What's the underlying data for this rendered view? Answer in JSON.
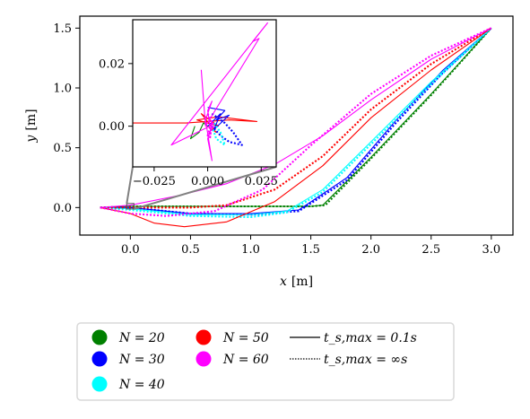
{
  "chart_data": {
    "type": "line",
    "xlabel": {
      "var": "x",
      "unit": "[m]"
    },
    "ylabel": {
      "var": "y",
      "unit": "[m]"
    },
    "xlim": [
      -0.42,
      3.18
    ],
    "ylim": [
      -0.23,
      1.6
    ],
    "xticks": [
      "0.0",
      "0.5",
      "1.0",
      "1.5",
      "2.0",
      "2.5",
      "3.0"
    ],
    "xtick_values": [
      0,
      0.5,
      1,
      1.5,
      2,
      2.5,
      3
    ],
    "yticks": [
      "0.0",
      "0.5",
      "1.0",
      "1.5"
    ],
    "ytick_values": [
      0,
      0.5,
      1,
      1.5
    ],
    "legend": [
      {
        "name": "N = 20",
        "color": "#008000"
      },
      {
        "name": "N = 30",
        "color": "#0000ff"
      },
      {
        "name": "N = 40",
        "color": "#00ffff"
      },
      {
        "name": "N = 50",
        "color": "#ff0000"
      },
      {
        "name": "N = 60",
        "color": "#ff00ff"
      }
    ],
    "style_legend": [
      {
        "name": "t_s,max = 0.1s",
        "style": "solid"
      },
      {
        "name": "t_s,max = ∞s",
        "style": "dotted"
      }
    ],
    "series": [
      {
        "name": "N = 20",
        "color": "#008000",
        "style": "solid",
        "points": [
          [
            -0.25,
            0
          ],
          [
            0,
            0.01
          ],
          [
            0.5,
            0.01
          ],
          [
            1,
            0.01
          ],
          [
            1.5,
            0.01
          ],
          [
            1.6,
            0.02
          ],
          [
            2.0,
            0.42
          ],
          [
            2.5,
            0.95
          ],
          [
            3.0,
            1.5
          ]
        ]
      },
      {
        "name": "N = 20",
        "color": "#008000",
        "style": "dotted",
        "points": [
          [
            -0.25,
            0
          ],
          [
            0,
            0.01
          ],
          [
            0.5,
            0.01
          ],
          [
            1,
            0.01
          ],
          [
            1.5,
            0.01
          ],
          [
            1.62,
            0.02
          ],
          [
            2.0,
            0.41
          ],
          [
            2.5,
            0.94
          ],
          [
            3.0,
            1.5
          ]
        ]
      },
      {
        "name": "N = 30",
        "color": "#0000ff",
        "style": "solid",
        "points": [
          [
            -0.25,
            0
          ],
          [
            0,
            0
          ],
          [
            0.5,
            -0.05
          ],
          [
            1,
            -0.05
          ],
          [
            1.4,
            -0.02
          ],
          [
            1.8,
            0.25
          ],
          [
            2.2,
            0.72
          ],
          [
            2.6,
            1.15
          ],
          [
            3.0,
            1.5
          ]
        ]
      },
      {
        "name": "N = 30",
        "color": "#0000ff",
        "style": "dotted",
        "points": [
          [
            -0.25,
            0
          ],
          [
            0,
            0
          ],
          [
            0.5,
            -0.05
          ],
          [
            1,
            -0.06
          ],
          [
            1.4,
            -0.03
          ],
          [
            1.8,
            0.23
          ],
          [
            2.2,
            0.7
          ],
          [
            2.6,
            1.13
          ],
          [
            3.0,
            1.5
          ]
        ]
      },
      {
        "name": "N = 40",
        "color": "#00ffff",
        "style": "solid",
        "points": [
          [
            -0.25,
            0
          ],
          [
            0,
            -0.01
          ],
          [
            0.5,
            -0.06
          ],
          [
            1,
            -0.06
          ],
          [
            1.3,
            -0.03
          ],
          [
            1.6,
            0.15
          ],
          [
            2.0,
            0.55
          ],
          [
            2.5,
            1.05
          ],
          [
            3.0,
            1.5
          ]
        ]
      },
      {
        "name": "N = 40",
        "color": "#00ffff",
        "style": "dotted",
        "points": [
          [
            -0.25,
            0
          ],
          [
            0,
            -0.02
          ],
          [
            0.5,
            -0.07
          ],
          [
            1,
            -0.08
          ],
          [
            1.3,
            -0.04
          ],
          [
            1.6,
            0.13
          ],
          [
            2.0,
            0.53
          ],
          [
            2.5,
            1.03
          ],
          [
            3.0,
            1.5
          ]
        ]
      },
      {
        "name": "N = 50",
        "color": "#ff0000",
        "style": "solid",
        "points": [
          [
            -0.25,
            0
          ],
          [
            0,
            -0.05
          ],
          [
            0.2,
            -0.13
          ],
          [
            0.45,
            -0.16
          ],
          [
            0.8,
            -0.12
          ],
          [
            1.2,
            0.05
          ],
          [
            1.6,
            0.35
          ],
          [
            2.0,
            0.75
          ],
          [
            2.5,
            1.15
          ],
          [
            3.0,
            1.5
          ]
        ]
      },
      {
        "name": "N = 50",
        "color": "#ff0000",
        "style": "dotted",
        "points": [
          [
            -0.25,
            0
          ],
          [
            0,
            0
          ],
          [
            0.5,
            0
          ],
          [
            0.8,
            0.02
          ],
          [
            1.2,
            0.15
          ],
          [
            1.6,
            0.43
          ],
          [
            2.0,
            0.82
          ],
          [
            2.5,
            1.2
          ],
          [
            3.0,
            1.5
          ]
        ]
      },
      {
        "name": "N = 60",
        "color": "#ff00ff",
        "style": "solid",
        "points": [
          [
            -0.25,
            0
          ],
          [
            0,
            0.02
          ],
          [
            0.4,
            0.1
          ],
          [
            0.8,
            0.2
          ],
          [
            1.2,
            0.36
          ],
          [
            1.6,
            0.6
          ],
          [
            2.0,
            0.9
          ],
          [
            2.5,
            1.24
          ],
          [
            3.0,
            1.5
          ]
        ]
      },
      {
        "name": "N = 60",
        "color": "#ff00ff",
        "style": "dotted",
        "points": [
          [
            -0.25,
            0
          ],
          [
            0,
            -0.05
          ],
          [
            0.3,
            -0.07
          ],
          [
            0.7,
            -0.03
          ],
          [
            1.1,
            0.15
          ],
          [
            1.5,
            0.52
          ],
          [
            2.0,
            0.95
          ],
          [
            2.5,
            1.27
          ],
          [
            3.0,
            1.5
          ]
        ]
      }
    ],
    "inset": {
      "xlim": [
        -0.035,
        0.032
      ],
      "ylim": [
        -0.013,
        0.034
      ],
      "xticks": [
        "−0.025",
        "0.000",
        "0.025"
      ],
      "xtick_values": [
        -0.025,
        0,
        0.025
      ],
      "yticks": [
        "0.00",
        "0.02"
      ],
      "ytick_values": [
        0,
        0.02
      ],
      "zoom_region": {
        "x": [
          -0.03,
          0.03
        ],
        "y": [
          -0.012,
          0.034
        ]
      },
      "series": [
        {
          "color": "#ff0000",
          "style": "solid",
          "points": [
            [
              -0.035,
              0.001
            ],
            [
              -0.01,
              0.001
            ],
            [
              0.01,
              0.002
            ],
            [
              0.023,
              0.0015
            ],
            [
              0.005,
              0.003
            ],
            [
              -0.005,
              0.002
            ],
            [
              0.005,
              0.0
            ],
            [
              -0.003,
              0.004
            ],
            [
              0.004,
              -0.002
            ],
            [
              0,
              0
            ]
          ]
        },
        {
          "color": "#0000ff",
          "style": "solid",
          "points": [
            [
              0,
              0.006
            ],
            [
              0.008,
              0.005
            ],
            [
              0.004,
              0.002
            ],
            [
              0.01,
              0.0035
            ],
            [
              0.003,
              -0.001
            ],
            [
              0.006,
              0.004
            ],
            [
              0,
              0
            ]
          ]
        },
        {
          "color": "#0000ff",
          "style": "dotted",
          "points": [
            [
              0.002,
              0.004
            ],
            [
              0.008,
              0.001
            ],
            [
              0.012,
              -0.002
            ],
            [
              0.016,
              -0.006
            ],
            [
              0.01,
              -0.005
            ],
            [
              0.006,
              -0.003
            ],
            [
              0.002,
              0
            ]
          ]
        },
        {
          "color": "#008000",
          "style": "solid",
          "points": [
            [
              -0.006,
              0
            ],
            [
              -0.008,
              -0.004
            ],
            [
              -0.004,
              -0.002
            ],
            [
              -0.002,
              0.001
            ],
            [
              0,
              0
            ]
          ]
        },
        {
          "color": "#00ffff",
          "style": "dotted",
          "points": [
            [
              0.002,
              0
            ],
            [
              0.004,
              -0.004
            ],
            [
              0.008,
              -0.006
            ],
            [
              0.006,
              -0.002
            ],
            [
              0.003,
              0.001
            ]
          ]
        },
        {
          "color": "#ff00ff",
          "style": "solid",
          "points": [
            [
              -0.003,
              0.018
            ],
            [
              -0.001,
              0.0
            ],
            [
              0.024,
              0.028
            ],
            [
              0.021,
              0.027
            ],
            [
              0.028,
              0.033
            ],
            [
              -0.017,
              -0.006
            ],
            [
              0.001,
              0.0
            ],
            [
              0.0,
              0.005
            ],
            [
              0.002,
              0.008
            ],
            [
              -0.001,
              0.002
            ],
            [
              0.002,
              -0.011
            ],
            [
              0.0,
              -0.004
            ],
            [
              0.002,
              0.0
            ]
          ]
        },
        {
          "color": "#ff00ff",
          "style": "dotted",
          "points": [
            [
              0,
              0.004
            ],
            [
              0.003,
              0.0
            ],
            [
              0,
              -0.003
            ],
            [
              0.002,
              0.002
            ],
            [
              0.001,
              -0.004
            ],
            [
              0.002,
              0.001
            ]
          ]
        }
      ]
    }
  }
}
